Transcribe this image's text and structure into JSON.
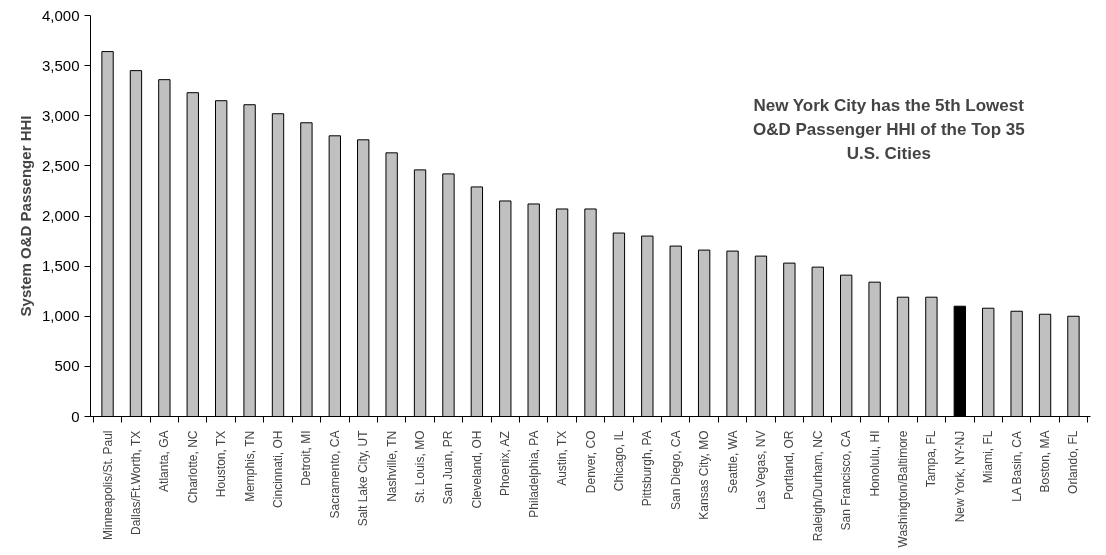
{
  "chart_data": {
    "type": "bar",
    "ylabel": "System O&D Passenger HHI",
    "annotations": [
      "New York City has the 5th Lowest\nO&D Passenger HHI of the Top 35\nU.S. Cities"
    ],
    "categories": [
      "Minneapolis/St. Paul",
      "Dallas/Ft.Worth, TX",
      "Atlanta, GA",
      "Charlotte, NC",
      "Houston, TX",
      "Memphis, TN",
      "Cincinnati, OH",
      "Detroit, MI",
      "Sacramento, CA",
      "Salt Lake City, UT",
      "Nashville, TN",
      "St. Louis, MO",
      "San Juan, PR",
      "Cleveland, OH",
      "Phoenix, AZ",
      "Philadelphia, PA",
      "Austin, TX",
      "Denver, CO",
      "Chicago, IL",
      "Pittsburgh, PA",
      "San Diego, CA",
      "Kansas City, MO",
      "Seattle, WA",
      "Las Vegas, NV",
      "Portland, OR",
      "Raleigh/Durham, NC",
      "San Francisco, CA",
      "Honolulu, HI",
      "Washington/Baltimore",
      "Tampa, FL",
      "New York, NY-NJ",
      "Miami, FL",
      "LA Basin, CA",
      "Boston, MA",
      "Orlando, FL"
    ],
    "values": [
      3640,
      3450,
      3360,
      3230,
      3150,
      3110,
      3020,
      2930,
      2800,
      2760,
      2630,
      2460,
      2420,
      2290,
      2150,
      2120,
      2070,
      2070,
      1830,
      1800,
      1700,
      1660,
      1650,
      1600,
      1530,
      1490,
      1410,
      1340,
      1190,
      1190,
      1100,
      1080,
      1050,
      1020,
      1000
    ],
    "colors": [
      "#c0c0c0",
      "#c0c0c0",
      "#c0c0c0",
      "#c0c0c0",
      "#c0c0c0",
      "#c0c0c0",
      "#c0c0c0",
      "#c0c0c0",
      "#c0c0c0",
      "#c0c0c0",
      "#c0c0c0",
      "#c0c0c0",
      "#c0c0c0",
      "#c0c0c0",
      "#c0c0c0",
      "#c0c0c0",
      "#c0c0c0",
      "#c0c0c0",
      "#c0c0c0",
      "#c0c0c0",
      "#c0c0c0",
      "#c0c0c0",
      "#c0c0c0",
      "#c0c0c0",
      "#c0c0c0",
      "#c0c0c0",
      "#c0c0c0",
      "#c0c0c0",
      "#c0c0c0",
      "#c0c0c0",
      "#000000",
      "#c0c0c0",
      "#c0c0c0",
      "#c0c0c0",
      "#c0c0c0"
    ],
    "ylim": [
      0,
      4000
    ],
    "yticks": [
      0,
      500,
      {
        "value": 1000,
        "label": "1,000"
      },
      {
        "value": 1500,
        "label": "1,500"
      },
      {
        "value": 2000,
        "label": "2,000"
      },
      {
        "value": 2500,
        "label": "2,500"
      },
      {
        "value": 3000,
        "label": "3,000"
      },
      {
        "value": 3500,
        "label": "3,500"
      },
      {
        "value": 4000,
        "label": "4,000"
      }
    ],
    "grid": false
  }
}
